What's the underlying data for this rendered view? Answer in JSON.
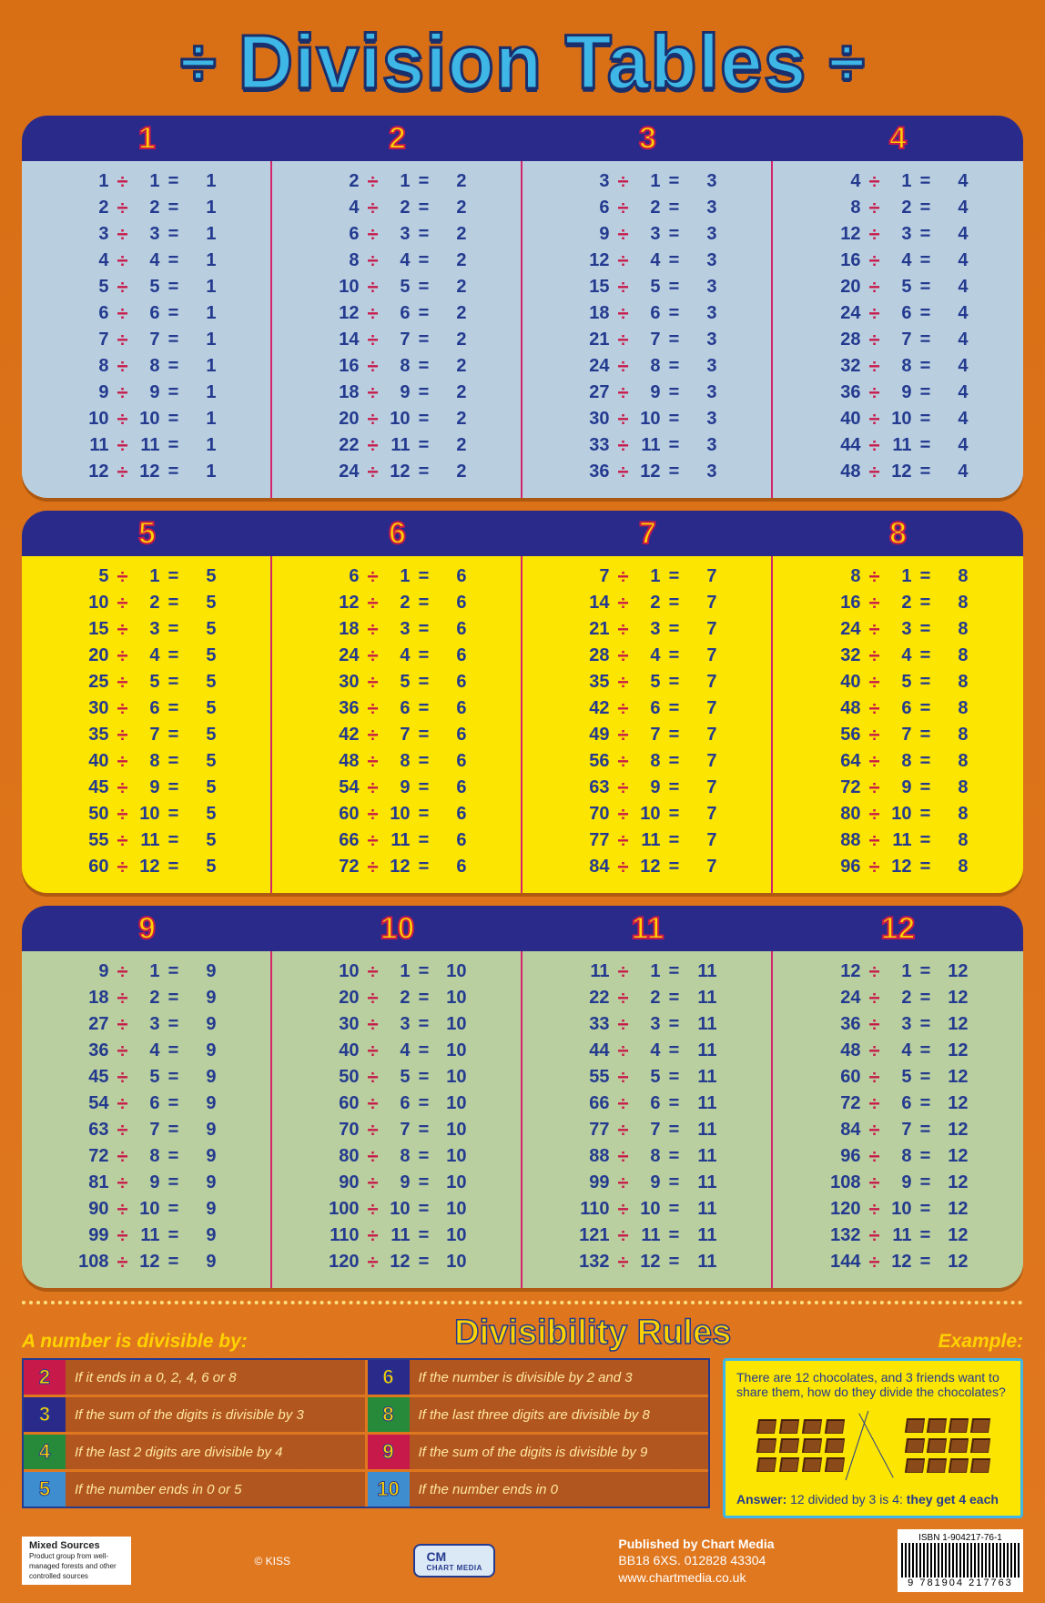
{
  "title": "Division Tables",
  "division_sign": "÷",
  "equals_sign": "=",
  "colors": {
    "page_bg": "#d96f15",
    "header_bg": "#2a2a8a",
    "header_num_fill": "#ffd200",
    "header_num_stroke": "#c81a4a",
    "number_color": "#243a8f",
    "divide_color": "#c81a4a",
    "separator": "#d3266a",
    "block_bgs": [
      "#b9cfe0",
      "#fce500",
      "#b9cfa0"
    ],
    "title_fill": "#3eb6e6",
    "title_stroke": "#1a2f6b"
  },
  "blocks": [
    {
      "bg": "bg-blue",
      "tables": [
        1,
        2,
        3,
        4
      ]
    },
    {
      "bg": "bg-yellow",
      "tables": [
        5,
        6,
        7,
        8
      ]
    },
    {
      "bg": "bg-green",
      "tables": [
        9,
        10,
        11,
        12
      ]
    }
  ],
  "rows_per_table": 12,
  "rules_section": {
    "heading": "Divisibility Rules",
    "intro": "A number is divisible by:",
    "example_label": "Example:",
    "rules": [
      {
        "n": "2",
        "bg": "#c81a4a",
        "text": "If it ends in a 0, 2, 4, 6 or 8"
      },
      {
        "n": "6",
        "bg": "#2a2a8a",
        "text": "If the number is divisible by 2 and 3"
      },
      {
        "n": "3",
        "bg": "#2a2a8a",
        "text": "If the sum of the digits is divisible by 3"
      },
      {
        "n": "8",
        "bg": "#278a3a",
        "text": "If the last three digits are divisible by 8"
      },
      {
        "n": "4",
        "bg": "#278a3a",
        "text": "If the last 2 digits are divisible by 4"
      },
      {
        "n": "9",
        "bg": "#c81a4a",
        "text": "If the sum of the digits is divisible by 9"
      },
      {
        "n": "5",
        "bg": "#3e8ecf",
        "text": "If the number ends in 0 or 5"
      },
      {
        "n": "10",
        "bg": "#3e8ecf",
        "text": "If the number ends in 0"
      }
    ],
    "example": {
      "question": "There are 12 chocolates, and 3 friends want to share them, how do they divide the chocolates?",
      "answer_prefix": "Answer: ",
      "answer_text": "12 divided by 3 is 4: ",
      "answer_bold": "they get 4 each"
    }
  },
  "footer": {
    "fsc_title": "Mixed Sources",
    "fsc_sub": "Product group from well-managed forests and other controlled sources",
    "kiss": "© KISS",
    "cm": "CM",
    "publisher_line1": "Published by Chart Media",
    "publisher_line2": "BB18 6XS. 012828 43304",
    "publisher_line3": "www.chartmedia.co.uk",
    "isbn": "ISBN 1-904217-76-1",
    "barcode_num": "9 781904 217763"
  }
}
